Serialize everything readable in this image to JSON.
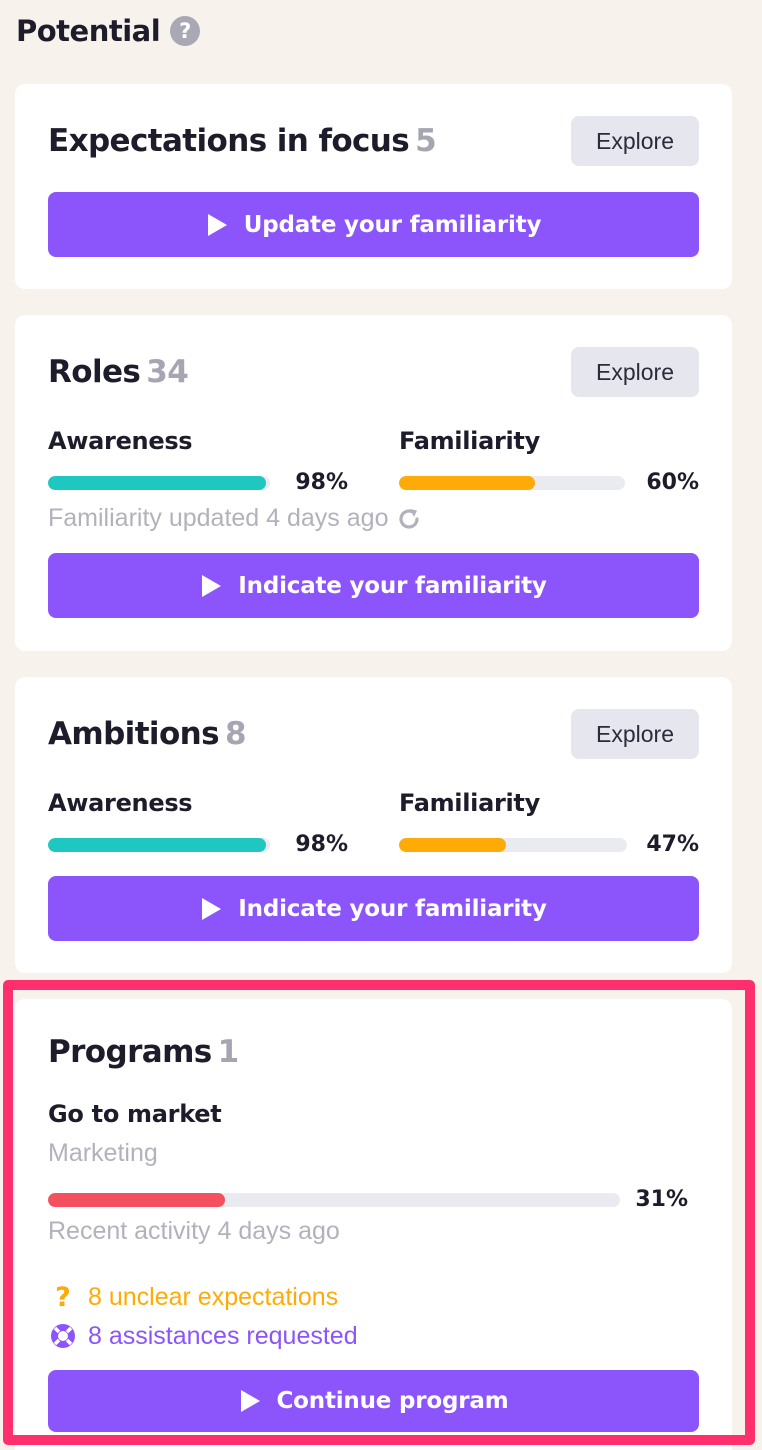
{
  "header": {
    "title": "Potential",
    "help_glyph": "?"
  },
  "cards": {
    "expectations": {
      "title": "Expectations in focus",
      "count": "5",
      "explore_label": "Explore",
      "button_label": "Update your familiarity"
    },
    "roles": {
      "title": "Roles",
      "count": "34",
      "explore_label": "Explore",
      "awareness": {
        "label": "Awareness",
        "percent_text": "98%",
        "value": 0.98,
        "color": "#1ec8c0"
      },
      "familiarity": {
        "label": "Familiarity",
        "percent_text": "60%",
        "value": 0.6,
        "color": "#ffab07"
      },
      "updated_text": "Familiarity updated 4 days ago",
      "button_label": "Indicate your familiarity"
    },
    "ambitions": {
      "title": "Ambitions",
      "count": "8",
      "explore_label": "Explore",
      "awareness": {
        "label": "Awareness",
        "percent_text": "98%",
        "value": 0.98,
        "color": "#1ec8c0"
      },
      "familiarity": {
        "label": "Familiarity",
        "percent_text": "47%",
        "value": 0.47,
        "color": "#ffab07"
      },
      "button_label": "Indicate your familiarity"
    },
    "programs": {
      "title": "Programs",
      "count": "1",
      "program_name": "Go to market",
      "program_category": "Marketing",
      "progress": {
        "percent_text": "31%",
        "value": 0.31,
        "color": "#f5505f"
      },
      "activity_text": "Recent activity 4 days ago",
      "unclear_text": "8 unclear expectations",
      "assist_text": "8 assistances requested",
      "button_label": "Continue program"
    }
  },
  "colors": {
    "accent": "#8b55fb",
    "warning": "#ffab07",
    "highlight": "#ff2f6e",
    "teal": "#1ec8c0",
    "red": "#f5505f"
  },
  "icons": [
    "help-icon",
    "play-icon",
    "refresh-icon",
    "question-mark-icon",
    "lifebuoy-icon"
  ]
}
